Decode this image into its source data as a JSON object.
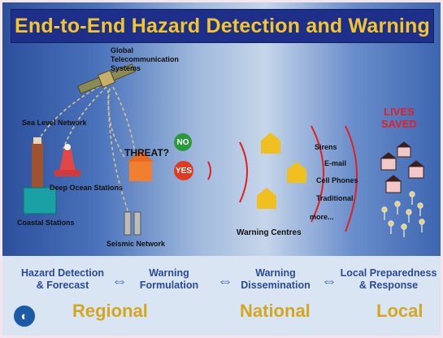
{
  "title": "End-to-End Hazard Detection and Warning",
  "labels": {
    "satellite": "Global\nTelecommunication\nSystems",
    "sea_level": "Sea Level Network",
    "deep_ocean": "Deep Ocean Stations",
    "coastal": "Coastal Stations",
    "seismic": "Seismic Network",
    "threat": "THREAT?",
    "no": "NO",
    "yes": "YES",
    "warning_centres": "Warning Centres",
    "lives_saved": "LIVES\nSAVED"
  },
  "channels": [
    "Sirens",
    "E-mail",
    "Cell Phones",
    "Traditional",
    "more..."
  ],
  "stages": [
    "Hazard Detection\n& Forecast",
    "Warning\nFormulation",
    "Warning\nDissemination",
    "Local Preparedness\n& Response"
  ],
  "levels": [
    "Regional",
    "National",
    "Local"
  ],
  "colors": {
    "title_bg": "#1e2f8a",
    "title_text": "#f3c52c",
    "stage_text": "#2a4a9a",
    "level_text": "#d4a720",
    "lives_saved": "#e0202a",
    "house": "#f0c020"
  }
}
